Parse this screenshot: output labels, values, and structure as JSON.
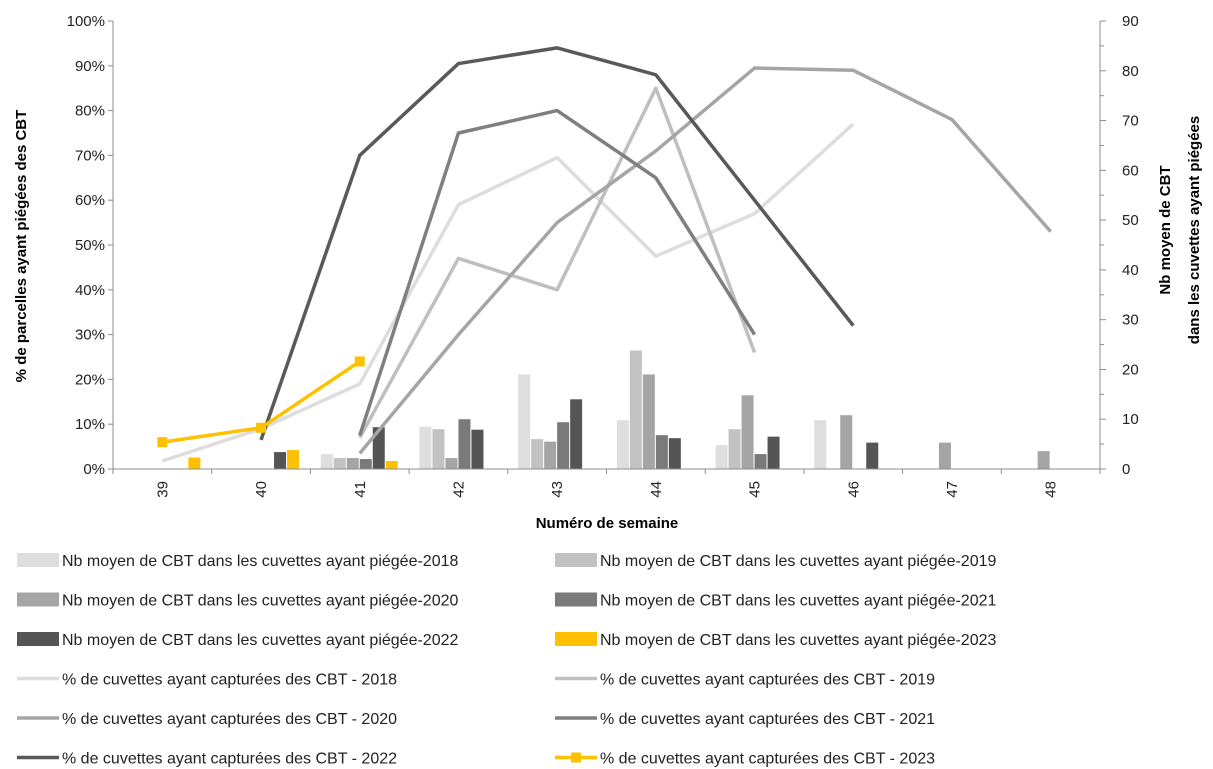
{
  "chart_data": {
    "type": "bar+line",
    "xlabel": "Numéro de semaine",
    "ylabel_left": "% de parcelles ayant piégées des CBT",
    "ylabel_right": [
      "Nb moyen de CBT",
      "dans les cuvettes ayant piégées"
    ],
    "categories": [
      "39",
      "40",
      "41",
      "42",
      "43",
      "44",
      "45",
      "46",
      "47",
      "48"
    ],
    "y_left": {
      "min": 0,
      "max": 100,
      "step": 10,
      "ticks": [
        "0%",
        "10%",
        "20%",
        "30%",
        "40%",
        "50%",
        "60%",
        "70%",
        "80%",
        "90%",
        "100%"
      ]
    },
    "y_right": {
      "min": 0,
      "max": 90,
      "step": 10,
      "ticks": [
        "0",
        "10",
        "20",
        "30",
        "40",
        "50",
        "60",
        "70",
        "80",
        "90"
      ]
    },
    "grid": "none",
    "legend_position": "bottom",
    "bar_series": [
      {
        "name": "Nb moyen de CBT dans les cuvettes ayant piégée-2018",
        "color": "#dedede",
        "values": [
          null,
          null,
          3,
          8.5,
          19,
          9.8,
          4.8,
          9.8,
          null,
          null
        ]
      },
      {
        "name": "Nb moyen de CBT dans les cuvettes ayant piégée-2019",
        "color": "#c2c2c2",
        "values": [
          null,
          null,
          2.2,
          8,
          6,
          23.8,
          8,
          null,
          null,
          null
        ]
      },
      {
        "name": "Nb moyen de CBT dans les cuvettes ayant piégée-2020",
        "color": "#a5a5a5",
        "values": [
          null,
          null,
          2.2,
          2.2,
          5.5,
          19,
          14.8,
          10.8,
          5.3,
          3.6
        ]
      },
      {
        "name": "Nb moyen de CBT dans les cuvettes ayant piégée-2021",
        "color": "#7a7a7a",
        "values": [
          null,
          null,
          2,
          10,
          9.4,
          6.8,
          3,
          null,
          null,
          null
        ]
      },
      {
        "name": "Nb moyen de CBT dans les cuvettes ayant piégée-2022",
        "color": "#555555",
        "values": [
          null,
          3.4,
          8.4,
          7.9,
          14,
          6.2,
          6.5,
          5.3,
          null,
          null
        ]
      },
      {
        "name": "Nb moyen de CBT dans les cuvettes ayant piégée-2023",
        "color": "#ffc000",
        "values": [
          2.3,
          3.8,
          1.6,
          null,
          null,
          null,
          null,
          null,
          null,
          null
        ]
      }
    ],
    "line_series": [
      {
        "name": "% de cuvettes ayant capturées des CBT - 2018",
        "color": "#dddddd",
        "marker": false,
        "values": [
          1.8,
          9,
          19,
          59,
          69.5,
          47.5,
          57,
          77,
          null,
          null
        ]
      },
      {
        "name": "% de cuvettes ayant capturées des CBT - 2019",
        "color": "#bfbfbf",
        "marker": false,
        "values": [
          null,
          null,
          7,
          47,
          40,
          85,
          26,
          null,
          null,
          null
        ]
      },
      {
        "name": "% de cuvettes ayant capturées des CBT - 2020",
        "color": "#a5a5a5",
        "marker": false,
        "values": [
          null,
          null,
          3.5,
          30,
          55,
          71,
          89.5,
          89,
          78,
          53
        ]
      },
      {
        "name": "% de cuvettes ayant capturées des CBT - 2021",
        "color": "#7f7f7f",
        "marker": false,
        "values": [
          null,
          null,
          7.5,
          75,
          80,
          65,
          30,
          null,
          null,
          null
        ]
      },
      {
        "name": "% de cuvettes ayant capturées des CBT - 2022",
        "color": "#595959",
        "marker": false,
        "values": [
          null,
          6.5,
          70,
          90.5,
          94,
          88,
          60,
          32,
          null,
          null
        ]
      },
      {
        "name": "% de cuvettes ayant capturées des CBT - 2023",
        "color": "#ffc000",
        "marker": true,
        "values": [
          6,
          9.2,
          24,
          null,
          null,
          null,
          null,
          null,
          null,
          null
        ]
      }
    ]
  }
}
